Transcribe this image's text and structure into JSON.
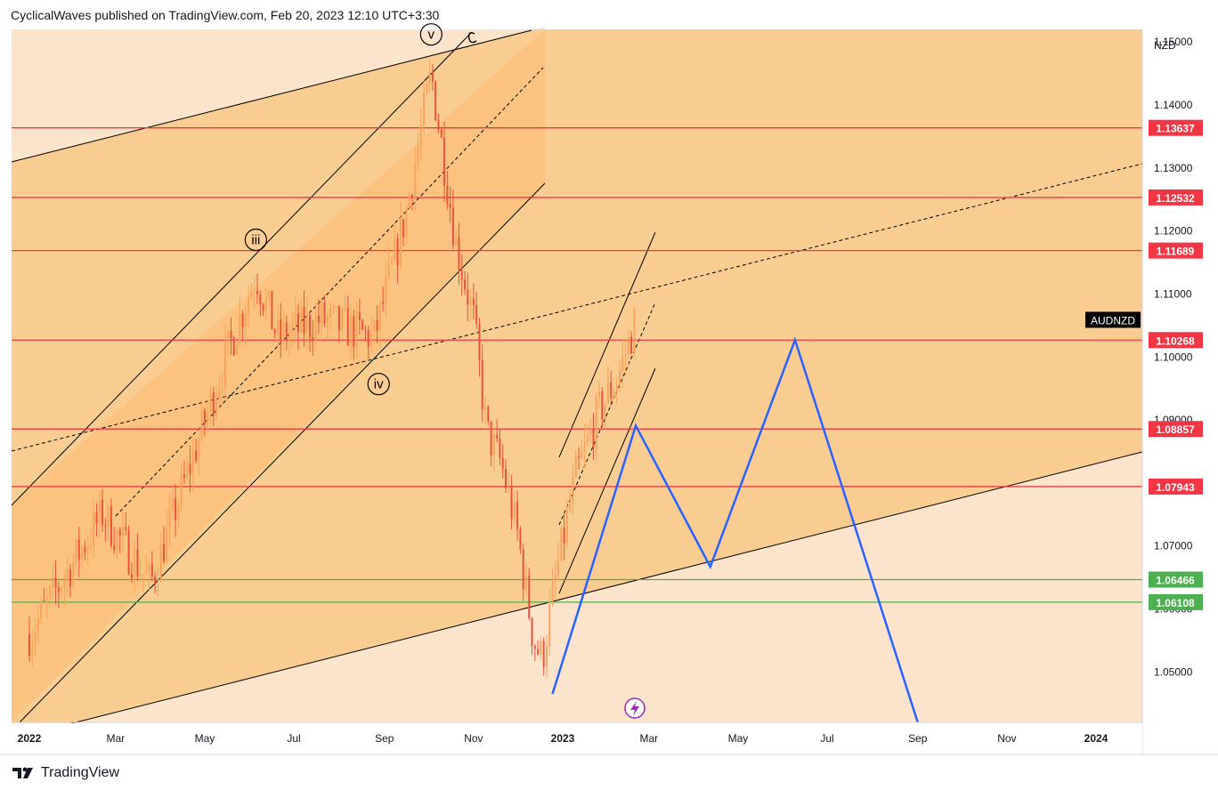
{
  "header": {
    "publisher": "CyclicalWaves published on TradingView.com, Feb 20, 2023 12:10 UTC+3:30"
  },
  "footer": {
    "brand": "TradingView"
  },
  "colors": {
    "background": "#f9cd92",
    "light_region": "#fbe3cc",
    "channel_region": "#fbc07a",
    "up_candle": "#f7a35c",
    "down_candle": "#e8533a",
    "resistance": "#f23645",
    "support": "#4caf50",
    "projection": "#2962ff",
    "symbol_tag": "#000000"
  },
  "chart_data": {
    "type": "candlestick",
    "symbol": "AUDNZD",
    "currency": "NZD",
    "ylim": [
      1.042,
      1.152
    ],
    "y_ticks": [
      "1.15000",
      "1.14000",
      "1.13000",
      "1.12000",
      "1.11000",
      "1.10000",
      "1.09000",
      "1.07000",
      "1.06000",
      "1.05000"
    ],
    "x_ticks": [
      "2022",
      "Mar",
      "May",
      "Jul",
      "Sep",
      "Nov",
      "2023",
      "Mar",
      "May",
      "Jul",
      "Sep",
      "Nov",
      "2024"
    ],
    "last_price": 1.1059,
    "horizontal_levels": [
      {
        "label": "1.13637",
        "value": 1.13637,
        "kind": "resistance"
      },
      {
        "label": "1.12532",
        "value": 1.12532,
        "kind": "resistance"
      },
      {
        "label": "1.11689",
        "value": 1.11689,
        "kind": "resistance"
      },
      {
        "label": "1.10268",
        "value": 1.10268,
        "kind": "resistance"
      },
      {
        "label": "1.08857",
        "value": 1.08857,
        "kind": "resistance"
      },
      {
        "label": "1.07943",
        "value": 1.07943,
        "kind": "resistance"
      },
      {
        "label": "1.06466",
        "value": 1.06466,
        "kind": "support"
      },
      {
        "label": "1.06108",
        "value": 1.06108,
        "kind": "support"
      }
    ],
    "wave_labels": [
      {
        "label": "iii",
        "date": "2022-06-05",
        "value": 1.1186
      },
      {
        "label": "iv",
        "date": "2022-08-28",
        "value": 1.0957
      },
      {
        "label": "v",
        "date": "2022-10-03",
        "value": 1.1512
      }
    ],
    "projection_path": [
      {
        "date": "2022-12-25",
        "value": 1.0465
      },
      {
        "date": "2023-02-20",
        "value": 1.0891
      },
      {
        "date": "2023-04-12",
        "value": 1.0667
      },
      {
        "date": "2023-06-09",
        "value": 1.1027
      },
      {
        "date": "2023-09-01",
        "value": 1.042
      }
    ],
    "candle_path": [
      {
        "date": "2022-01-01",
        "value": 1.056
      },
      {
        "date": "2022-02-20",
        "value": 1.075
      },
      {
        "date": "2022-03-25",
        "value": 1.064
      },
      {
        "date": "2022-05-20",
        "value": 1.103
      },
      {
        "date": "2022-06-05",
        "value": 1.113
      },
      {
        "date": "2022-06-20",
        "value": 1.103
      },
      {
        "date": "2022-07-20",
        "value": 1.106
      },
      {
        "date": "2022-08-25",
        "value": 1.103
      },
      {
        "date": "2022-09-15",
        "value": 1.122
      },
      {
        "date": "2022-10-03",
        "value": 1.145
      },
      {
        "date": "2022-10-20",
        "value": 1.118
      },
      {
        "date": "2022-11-01",
        "value": 1.106
      },
      {
        "date": "2022-11-10",
        "value": 1.088
      },
      {
        "date": "2022-11-20",
        "value": 1.083
      },
      {
        "date": "2022-12-01",
        "value": 1.072
      },
      {
        "date": "2022-12-12",
        "value": 1.055
      },
      {
        "date": "2022-12-18",
        "value": 1.052
      },
      {
        "date": "2022-12-28",
        "value": 1.066
      },
      {
        "date": "2023-01-10",
        "value": 1.081
      },
      {
        "date": "2023-01-25",
        "value": 1.091
      },
      {
        "date": "2023-02-08",
        "value": 1.097
      },
      {
        "date": "2023-02-20",
        "value": 1.1059
      }
    ]
  }
}
